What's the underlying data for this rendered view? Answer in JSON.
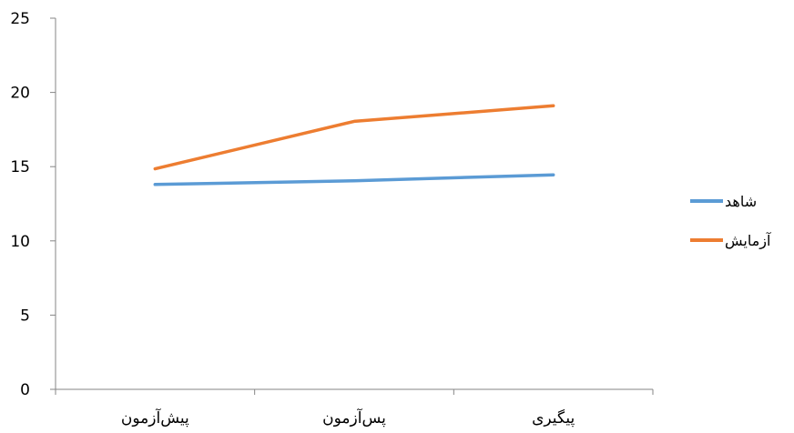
{
  "chart_data": {
    "type": "line",
    "categories": [
      "پیش‌آزمون",
      "پس‌آزمون",
      "پیگیری"
    ],
    "series": [
      {
        "name": "شاهد",
        "color": "#5B9BD5",
        "values": [
          13.8,
          14.05,
          14.45
        ]
      },
      {
        "name": "آزمایش",
        "color": "#ED7D31",
        "values": [
          14.85,
          18.05,
          19.1
        ]
      }
    ],
    "ylim": [
      0,
      25
    ],
    "yticks": [
      0,
      5,
      10,
      15,
      20,
      25
    ],
    "grid": false,
    "legend_position": "right"
  }
}
